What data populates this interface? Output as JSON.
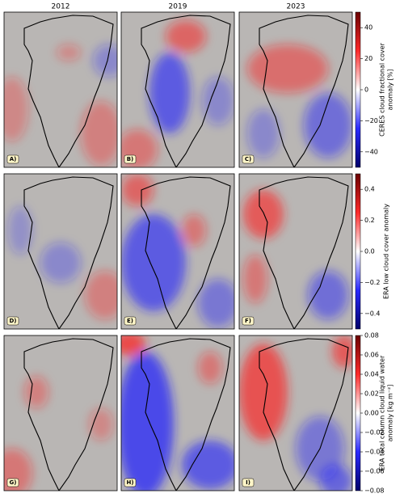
{
  "columns": [
    "2012",
    "2019",
    "2023"
  ],
  "rows": [
    {
      "panels": [
        "A)",
        "B)",
        "C)"
      ],
      "colorbar": {
        "label": [
          "CERES cloud fractional cover",
          "anomaly [%]"
        ],
        "lim": [
          -50,
          50
        ],
        "ticks": [
          40,
          20,
          0,
          {
            "value": -20,
            "label": "−20"
          },
          {
            "value": -40,
            "label": "−40"
          }
        ]
      }
    },
    {
      "panels": [
        "D)",
        "E)",
        "F)"
      ],
      "colorbar": {
        "label": [
          "ERA low cloud cover anomaly"
        ],
        "lim": [
          -0.5,
          0.5
        ],
        "ticks": [
          0.4,
          0.2,
          {
            "value": 0,
            "label": "0.0"
          },
          {
            "value": -0.2,
            "label": "−0.2"
          },
          {
            "value": -0.4,
            "label": "−0.4"
          }
        ]
      }
    },
    {
      "panels": [
        "G)",
        "H)",
        "I)"
      ],
      "colorbar": {
        "label": [
          "ERA total column cloud liquid water",
          "anomaly [kg m⁻²]"
        ],
        "lim": [
          -0.08,
          0.08
        ],
        "ticks": [
          0.08,
          0.06,
          0.04,
          0.02,
          {
            "value": 0,
            "label": "0.00"
          },
          {
            "value": -0.02,
            "label": "−0.02"
          },
          {
            "value": -0.04,
            "label": "−0.04"
          },
          {
            "value": -0.06,
            "label": "−0.06"
          },
          {
            "value": -0.08,
            "label": "−0.08"
          }
        ]
      }
    }
  ]
}
